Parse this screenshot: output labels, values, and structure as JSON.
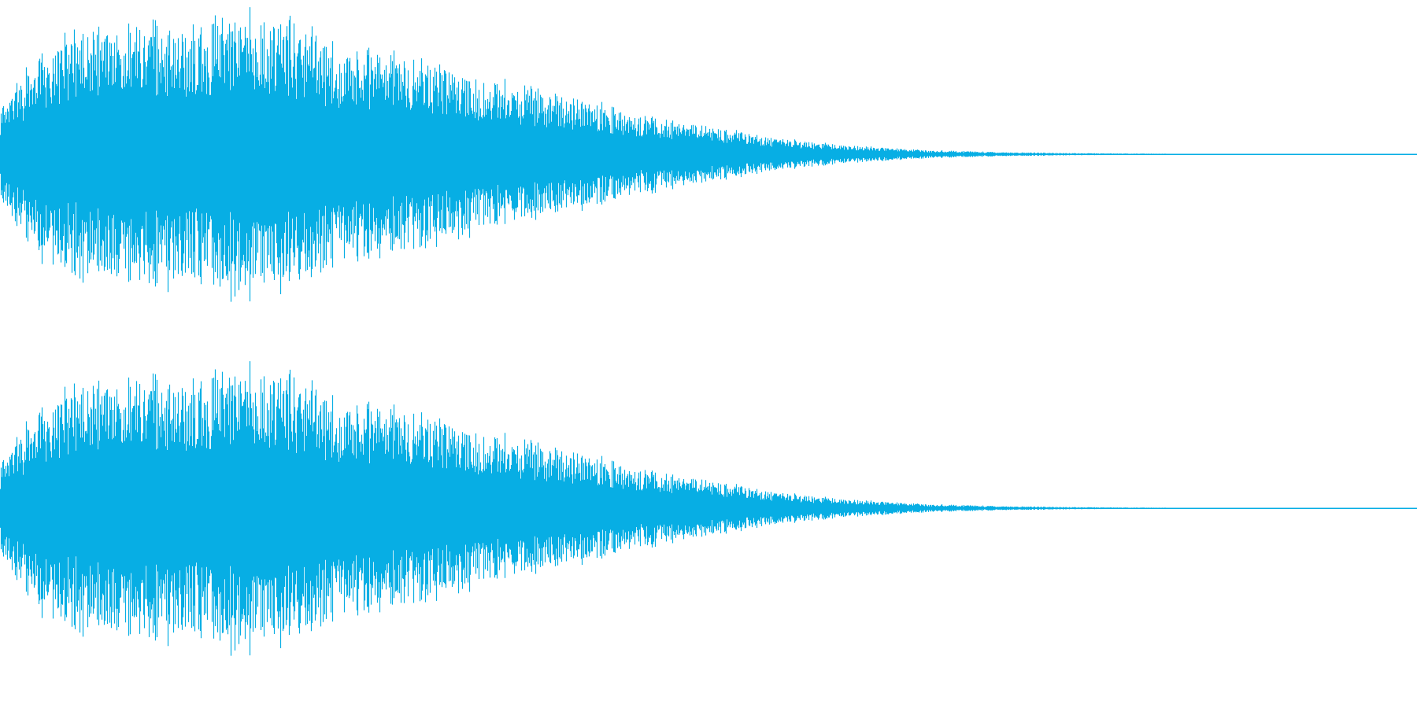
{
  "waveform": {
    "color": "#07aee4",
    "background": "#ffffff",
    "channels": [
      {
        "name": "",
        "envelope": [
          0.3,
          0.62,
          0.8,
          0.86,
          0.88,
          0.9,
          0.92,
          0.94,
          0.96,
          0.97,
          1.0,
          0.96,
          0.9,
          0.82,
          0.76,
          0.74,
          0.72,
          0.66,
          0.6,
          0.55,
          0.52,
          0.5,
          0.44,
          0.4,
          0.36,
          0.3,
          0.27,
          0.24,
          0.21,
          0.18,
          0.15,
          0.12,
          0.1,
          0.08,
          0.06,
          0.05,
          0.04,
          0.03,
          0.025,
          0.02,
          0.015,
          0.012,
          0.01,
          0.008,
          0.006,
          0.005,
          0.004,
          0.003,
          0.002,
          0.001,
          0.001,
          0.0
        ]
      },
      {
        "name": "",
        "envelope": [
          0.3,
          0.62,
          0.8,
          0.86,
          0.88,
          0.9,
          0.92,
          0.94,
          0.96,
          0.97,
          1.0,
          0.96,
          0.9,
          0.82,
          0.76,
          0.74,
          0.72,
          0.66,
          0.6,
          0.55,
          0.52,
          0.5,
          0.44,
          0.4,
          0.36,
          0.3,
          0.27,
          0.24,
          0.21,
          0.18,
          0.15,
          0.12,
          0.1,
          0.08,
          0.06,
          0.05,
          0.04,
          0.03,
          0.025,
          0.02,
          0.015,
          0.012,
          0.01,
          0.008,
          0.006,
          0.005,
          0.004,
          0.003,
          0.002,
          0.001,
          0.001,
          0.0
        ]
      }
    ]
  }
}
